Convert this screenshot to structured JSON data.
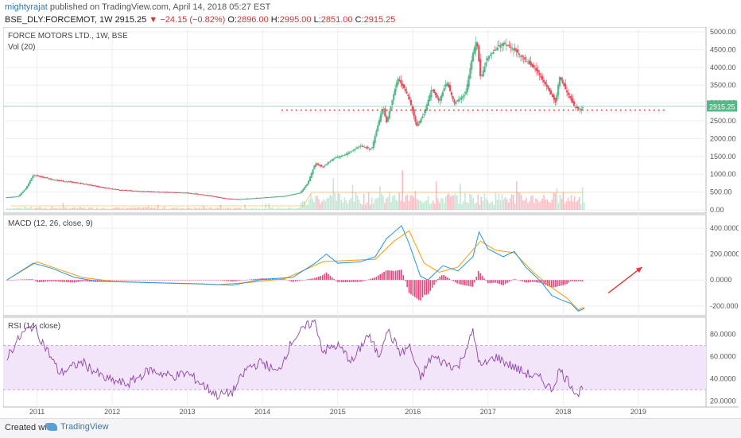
{
  "header": {
    "publisher": "mightyrajat",
    "published_text": "published on TradingView.com, April 14, 2018 05:27 EST",
    "symbol": "BSE_DLY:FORCEMOT, 1W",
    "last": "2915.25",
    "change": "▼ −24.15 (−0.82%)",
    "ohlc": {
      "o": "2896.00",
      "h": "2995.00",
      "l": "2851.00",
      "c": "2915.25"
    }
  },
  "footer": {
    "created_with": "Created with",
    "brand": "TradingView"
  },
  "colors": {
    "up": "#53b987",
    "down": "#eb4d5c",
    "macd": "#2196f3",
    "signal": "#ff9800",
    "hist": "#e91e63",
    "rsi": "#8e44ad",
    "rsi_band": "#f3e5f9",
    "arrow": "#e53935",
    "support": "#e53935"
  },
  "chart_data": [
    {
      "type": "candlestick",
      "title": "FORCE MOTORS LTD., 1W, BSE",
      "subtitle": "Vol (20)",
      "x_ticks": [
        "2011",
        "2012",
        "2013",
        "2014",
        "2015",
        "2016",
        "2017",
        "2018",
        "2019"
      ],
      "y_ticks": [
        "5000.00",
        "4500.00",
        "4000.00",
        "3500.00",
        "3000.00",
        "2500.00",
        "2000.00",
        "1500.00",
        "1000.00",
        "500.00",
        "0.00"
      ],
      "ylim": [
        0,
        5000
      ],
      "last_price_label": "2915.25",
      "support_level": 2800,
      "price_path": [
        [
          2010.6,
          350
        ],
        [
          2010.75,
          380
        ],
        [
          2010.85,
          600
        ],
        [
          2010.95,
          980
        ],
        [
          2011.1,
          900
        ],
        [
          2011.3,
          820
        ],
        [
          2011.6,
          740
        ],
        [
          2011.9,
          620
        ],
        [
          2012.1,
          560
        ],
        [
          2012.4,
          520
        ],
        [
          2012.7,
          500
        ],
        [
          2013.0,
          480
        ],
        [
          2013.3,
          400
        ],
        [
          2013.5,
          320
        ],
        [
          2013.7,
          300
        ],
        [
          2013.9,
          330
        ],
        [
          2014.1,
          360
        ],
        [
          2014.3,
          390
        ],
        [
          2014.5,
          480
        ],
        [
          2014.6,
          750
        ],
        [
          2014.7,
          1300
        ],
        [
          2014.8,
          1200
        ],
        [
          2014.95,
          1450
        ],
        [
          2015.1,
          1550
        ],
        [
          2015.3,
          1800
        ],
        [
          2015.45,
          1700
        ],
        [
          2015.6,
          2900
        ],
        [
          2015.65,
          2450
        ],
        [
          2015.8,
          3700
        ],
        [
          2015.95,
          3150
        ],
        [
          2016.05,
          2350
        ],
        [
          2016.15,
          2700
        ],
        [
          2016.25,
          3400
        ],
        [
          2016.35,
          3050
        ],
        [
          2016.45,
          3600
        ],
        [
          2016.55,
          3000
        ],
        [
          2016.7,
          3250
        ],
        [
          2016.8,
          4400
        ],
        [
          2016.85,
          4800
        ],
        [
          2016.9,
          3700
        ],
        [
          2017.0,
          4300
        ],
        [
          2017.1,
          4500
        ],
        [
          2017.2,
          4700
        ],
        [
          2017.35,
          4500
        ],
        [
          2017.5,
          4200
        ],
        [
          2017.65,
          3900
        ],
        [
          2017.8,
          3400
        ],
        [
          2017.9,
          3000
        ],
        [
          2017.95,
          3750
        ],
        [
          2018.05,
          3300
        ],
        [
          2018.15,
          2900
        ],
        [
          2018.22,
          2800
        ],
        [
          2018.28,
          2915
        ]
      ]
    },
    {
      "type": "line",
      "title": "MACD (12, 26, close, 9)",
      "series": [
        {
          "name": "MACD"
        },
        {
          "name": "Signal"
        },
        {
          "name": "Histogram"
        }
      ],
      "y_ticks": [
        "400.0000",
        "200.0000",
        "0.0000",
        "-200.0000"
      ],
      "ylim": [
        -250,
        480
      ],
      "macd": [
        [
          2010.6,
          0
        ],
        [
          2010.95,
          130
        ],
        [
          2011.2,
          90
        ],
        [
          2011.5,
          20
        ],
        [
          2011.8,
          -10
        ],
        [
          2012.5,
          -20
        ],
        [
          2013.2,
          -30
        ],
        [
          2013.6,
          -40
        ],
        [
          2014.0,
          5
        ],
        [
          2014.4,
          20
        ],
        [
          2014.7,
          130
        ],
        [
          2014.85,
          200
        ],
        [
          2015.0,
          130
        ],
        [
          2015.3,
          140
        ],
        [
          2015.5,
          180
        ],
        [
          2015.65,
          320
        ],
        [
          2015.85,
          420
        ],
        [
          2015.95,
          280
        ],
        [
          2016.1,
          30
        ],
        [
          2016.2,
          0
        ],
        [
          2016.4,
          110
        ],
        [
          2016.6,
          70
        ],
        [
          2016.8,
          180
        ],
        [
          2016.88,
          370
        ],
        [
          2017.0,
          240
        ],
        [
          2017.2,
          180
        ],
        [
          2017.35,
          220
        ],
        [
          2017.5,
          100
        ],
        [
          2017.7,
          -10
        ],
        [
          2017.85,
          -120
        ],
        [
          2018.0,
          -160
        ],
        [
          2018.1,
          -180
        ],
        [
          2018.2,
          -240
        ],
        [
          2018.28,
          -220
        ]
      ],
      "signal": [
        [
          2010.6,
          0
        ],
        [
          2011.0,
          140
        ],
        [
          2011.3,
          80
        ],
        [
          2011.6,
          20
        ],
        [
          2012.0,
          -10
        ],
        [
          2012.8,
          -25
        ],
        [
          2013.4,
          -35
        ],
        [
          2013.8,
          -20
        ],
        [
          2014.3,
          10
        ],
        [
          2014.8,
          140
        ],
        [
          2015.1,
          150
        ],
        [
          2015.5,
          160
        ],
        [
          2015.75,
          300
        ],
        [
          2015.95,
          380
        ],
        [
          2016.15,
          130
        ],
        [
          2016.35,
          60
        ],
        [
          2016.6,
          100
        ],
        [
          2016.9,
          300
        ],
        [
          2017.1,
          230
        ],
        [
          2017.35,
          210
        ],
        [
          2017.6,
          60
        ],
        [
          2017.85,
          -60
        ],
        [
          2018.05,
          -140
        ],
        [
          2018.2,
          -230
        ],
        [
          2018.28,
          -210
        ]
      ],
      "arrow": {
        "from": [
          2018.6,
          -100
        ],
        "to": [
          2019.05,
          100
        ]
      }
    },
    {
      "type": "line",
      "title": "RSI (14, close)",
      "y_ticks": [
        "80.0000",
        "60.0000",
        "40.0000",
        "20.0000"
      ],
      "ylim": [
        16,
        94
      ],
      "band": [
        30,
        70
      ],
      "rsi": [
        [
          2010.6,
          60
        ],
        [
          2010.8,
          80
        ],
        [
          2010.95,
          88
        ],
        [
          2011.1,
          70
        ],
        [
          2011.3,
          45
        ],
        [
          2011.6,
          55
        ],
        [
          2011.9,
          40
        ],
        [
          2012.2,
          35
        ],
        [
          2012.5,
          48
        ],
        [
          2012.8,
          42
        ],
        [
          2013.0,
          45
        ],
        [
          2013.2,
          35
        ],
        [
          2013.4,
          25
        ],
        [
          2013.6,
          28
        ],
        [
          2013.8,
          50
        ],
        [
          2014.0,
          55
        ],
        [
          2014.2,
          45
        ],
        [
          2014.4,
          75
        ],
        [
          2014.6,
          88
        ],
        [
          2014.7,
          92
        ],
        [
          2014.8,
          65
        ],
        [
          2015.0,
          70
        ],
        [
          2015.2,
          55
        ],
        [
          2015.4,
          80
        ],
        [
          2015.55,
          60
        ],
        [
          2015.65,
          85
        ],
        [
          2015.85,
          62
        ],
        [
          2015.95,
          70
        ],
        [
          2016.1,
          40
        ],
        [
          2016.25,
          60
        ],
        [
          2016.4,
          55
        ],
        [
          2016.6,
          50
        ],
        [
          2016.8,
          82
        ],
        [
          2016.9,
          50
        ],
        [
          2017.1,
          60
        ],
        [
          2017.3,
          52
        ],
        [
          2017.5,
          45
        ],
        [
          2017.7,
          40
        ],
        [
          2017.85,
          30
        ],
        [
          2017.95,
          48
        ],
        [
          2018.1,
          35
        ],
        [
          2018.2,
          25
        ],
        [
          2018.28,
          38
        ]
      ]
    }
  ]
}
